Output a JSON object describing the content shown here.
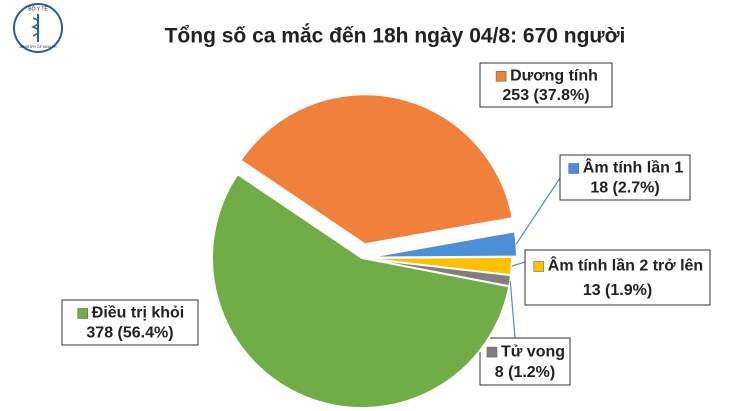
{
  "logo": {
    "top": "BỘ Y TẾ",
    "bottom": "MINISTRY OF HEALTH"
  },
  "chart_data": {
    "type": "pie",
    "title": "Tổng số ca mắc đến 18h ngày 04/8: 670 người",
    "categories": [
      "Dương tính",
      "Âm tính lần 1",
      "Âm tính lần 2 trở lên",
      "Tử vong",
      "Điều trị khỏi"
    ],
    "values": [
      253,
      18,
      13,
      8,
      378
    ],
    "value_labels": [
      "253 (37.8%)",
      "18 (2.7%)",
      "13 (1.9%)",
      "8 (1.2%)",
      "378 (56.4%)"
    ],
    "colors": [
      "#f0803c",
      "#4a8fd8",
      "#ffc000",
      "#7f7f7f",
      "#70ad47"
    ]
  }
}
